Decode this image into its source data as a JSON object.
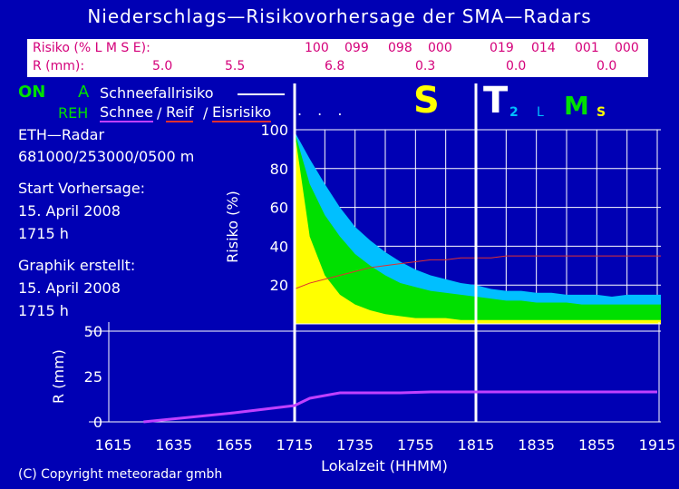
{
  "title": "Niederschlags—Risikovorhersage der SMA—Radars",
  "top_bar": {
    "risk_label": "Risiko (% L M S E):",
    "risk_values": [
      "100",
      "099",
      "098",
      "000",
      "019",
      "014",
      "001",
      "000"
    ],
    "rain_label": "R (mm):",
    "rain_values": [
      "5.0",
      "5.5",
      "6.8",
      "0.3",
      "0.0",
      "0.0"
    ]
  },
  "legend": {
    "on_label": "ON",
    "a_label": "A",
    "snowfall_label": "Schneefallrisiko",
    "reh_label": "REH",
    "schnee_label": "Schnee",
    "slash1": "/",
    "reif_label": "Reif",
    "slash2": "/",
    "eis_label": "Eisrisiko"
  },
  "info": {
    "radar": "ETH—Radar",
    "coords": "681000/253000/0500 m",
    "start_label": "Start Vorhersage:",
    "start_date": "15. April 2008",
    "start_time": "1715 h",
    "created_label": "Graphik erstellt:",
    "created_date": "15. April 2008",
    "created_time": "1715 h"
  },
  "indicators": {
    "dots": ". . .",
    "s": "S",
    "t": "T",
    "t_sub": "2",
    "l": "L",
    "m": "M",
    "s_small": "S"
  },
  "copyright": "(C) Copyright meteoradar gmbh",
  "colors": {
    "background": "#0000b4",
    "light": "#ffff00",
    "moderate": "#00e000",
    "strong": "#00bfff",
    "snowfall_line": "#ffffff",
    "rain_line": "#c040ff",
    "reif_line": "#e03030"
  },
  "chart_data": [
    {
      "type": "area",
      "ylabel": "Risiko (%)",
      "xlabel": "Lokalzeit (HHMM)",
      "x_ticks": [
        "1615",
        "1635",
        "1655",
        "1715",
        "1735",
        "1755",
        "1815",
        "1835",
        "1855",
        "1915"
      ],
      "y_ticks": [
        "20",
        "40",
        "60",
        "80",
        "100"
      ],
      "ylim": [
        0,
        100
      ],
      "x": [
        1715,
        1720,
        1725,
        1730,
        1735,
        1740,
        1745,
        1750,
        1755,
        1800,
        1805,
        1810,
        1815,
        1820,
        1825,
        1830,
        1835,
        1840,
        1845,
        1850,
        1855,
        1860,
        1865,
        1870,
        1875
      ],
      "series": [
        {
          "name": "L",
          "values": [
            99,
            85,
            72,
            60,
            50,
            43,
            37,
            32,
            28,
            25,
            23,
            21,
            20,
            18,
            17,
            17,
            16,
            16,
            15,
            15,
            15,
            14,
            15,
            15,
            15
          ]
        },
        {
          "name": "M",
          "values": [
            99,
            72,
            56,
            45,
            36,
            30,
            25,
            21,
            19,
            17,
            16,
            15,
            14,
            13,
            12,
            12,
            11,
            11,
            11,
            10,
            10,
            10,
            10,
            10,
            10
          ]
        },
        {
          "name": "S",
          "values": [
            99,
            45,
            25,
            15,
            10,
            7,
            5,
            4,
            3,
            3,
            3,
            2,
            2,
            2,
            2,
            2,
            2,
            2,
            2,
            2,
            2,
            2,
            2,
            2,
            2
          ]
        },
        {
          "name": "Eisrisiko",
          "values": [
            18,
            21,
            23,
            25,
            27,
            29,
            30,
            31,
            32,
            33,
            33,
            34,
            34,
            34,
            35,
            35,
            35,
            35,
            35,
            35,
            35,
            35,
            35,
            35,
            35
          ]
        }
      ]
    },
    {
      "type": "line",
      "ylabel": "R (mm)",
      "xlabel": "Lokalzeit (HHMM)",
      "y_ticks": [
        "0",
        "25",
        "50"
      ],
      "ylim": [
        0,
        50
      ],
      "x": [
        1625,
        1655,
        1715,
        1720,
        1730,
        1750,
        1800,
        1820,
        1840,
        1860,
        1875
      ],
      "values": [
        0,
        5,
        9,
        13,
        16,
        16,
        16.5,
        16.5,
        16.5,
        16.5,
        16.5
      ]
    }
  ]
}
